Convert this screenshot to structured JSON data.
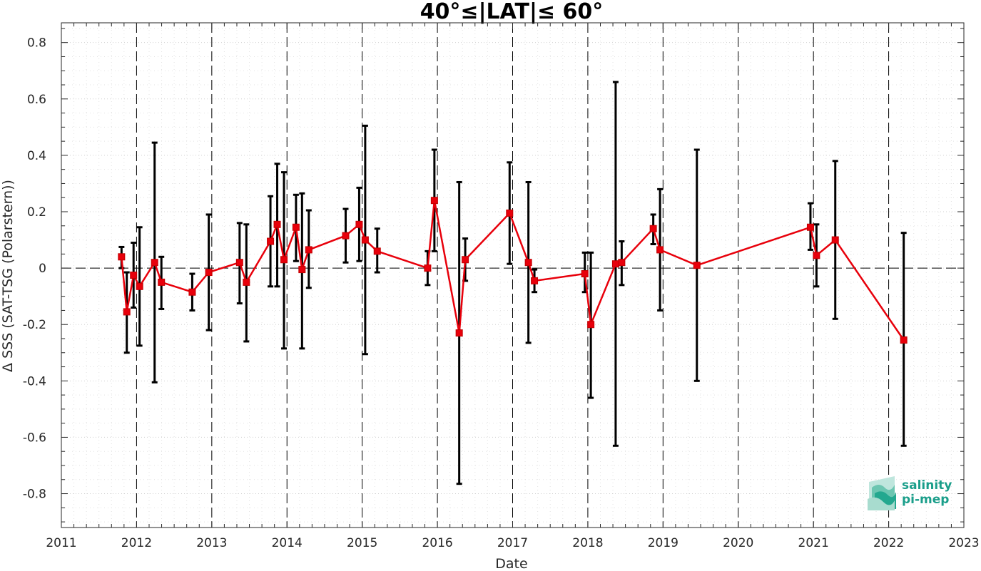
{
  "chart_data": {
    "type": "line",
    "title": "40°≤|LAT|≤ 60°",
    "xlabel": "Date",
    "ylabel": "Δ SSS (SAT-TSG (Polarstern))",
    "xlim": [
      2011,
      2023
    ],
    "ylim": [
      -0.92,
      0.87
    ],
    "x_ticks": [
      "2011",
      "2012",
      "2013",
      "2014",
      "2015",
      "2016",
      "2017",
      "2018",
      "2019",
      "2020",
      "2021",
      "2022",
      "2023"
    ],
    "y_ticks": [
      "0.8",
      "0.6",
      "0.4",
      "0.2",
      "0",
      "-0.2",
      "-0.4",
      "-0.6",
      "-0.8"
    ],
    "y_tick_values": [
      0.8,
      0.6,
      0.4,
      0.2,
      0,
      -0.2,
      -0.4,
      -0.6,
      -0.8
    ],
    "year_dividers": [
      2012,
      2013,
      2014,
      2015,
      2016,
      2017,
      2018,
      2019,
      2020,
      2021,
      2022
    ],
    "grid": true,
    "series": [
      {
        "color": "#e8000b",
        "error_color": "#000000",
        "marker": "square",
        "points": [
          {
            "x": 2011.8,
            "y": 0.04,
            "lo": 0.0,
            "hi": 0.075
          },
          {
            "x": 2011.87,
            "y": -0.155,
            "lo": -0.3,
            "hi": -0.015
          },
          {
            "x": 2011.96,
            "y": -0.025,
            "lo": -0.14,
            "hi": 0.09
          },
          {
            "x": 2012.04,
            "y": -0.065,
            "lo": -0.275,
            "hi": 0.145
          },
          {
            "x": 2012.24,
            "y": 0.02,
            "lo": -0.405,
            "hi": 0.445
          },
          {
            "x": 2012.33,
            "y": -0.05,
            "lo": -0.145,
            "hi": 0.04
          },
          {
            "x": 2012.74,
            "y": -0.085,
            "lo": -0.15,
            "hi": -0.02
          },
          {
            "x": 2012.96,
            "y": -0.015,
            "lo": -0.22,
            "hi": 0.19
          },
          {
            "x": 2013.37,
            "y": 0.02,
            "lo": -0.125,
            "hi": 0.16
          },
          {
            "x": 2013.46,
            "y": -0.05,
            "lo": -0.26,
            "hi": 0.155
          },
          {
            "x": 2013.78,
            "y": 0.095,
            "lo": -0.065,
            "hi": 0.255
          },
          {
            "x": 2013.87,
            "y": 0.155,
            "lo": -0.065,
            "hi": 0.37
          },
          {
            "x": 2013.96,
            "y": 0.03,
            "lo": -0.285,
            "hi": 0.34
          },
          {
            "x": 2014.12,
            "y": 0.145,
            "lo": 0.025,
            "hi": 0.26
          },
          {
            "x": 2014.2,
            "y": -0.005,
            "lo": -0.285,
            "hi": 0.265
          },
          {
            "x": 2014.29,
            "y": 0.065,
            "lo": -0.07,
            "hi": 0.205
          },
          {
            "x": 2014.78,
            "y": 0.115,
            "lo": 0.02,
            "hi": 0.21
          },
          {
            "x": 2014.96,
            "y": 0.155,
            "lo": 0.025,
            "hi": 0.285
          },
          {
            "x": 2015.04,
            "y": 0.1,
            "lo": -0.305,
            "hi": 0.505
          },
          {
            "x": 2015.2,
            "y": 0.06,
            "lo": -0.015,
            "hi": 0.14
          },
          {
            "x": 2015.87,
            "y": 0.0,
            "lo": -0.06,
            "hi": 0.06
          },
          {
            "x": 2015.96,
            "y": 0.24,
            "lo": 0.06,
            "hi": 0.42
          },
          {
            "x": 2016.29,
            "y": -0.23,
            "lo": -0.765,
            "hi": 0.305
          },
          {
            "x": 2016.37,
            "y": 0.03,
            "lo": -0.045,
            "hi": 0.105
          },
          {
            "x": 2016.96,
            "y": 0.195,
            "lo": 0.015,
            "hi": 0.375
          },
          {
            "x": 2017.21,
            "y": 0.02,
            "lo": -0.265,
            "hi": 0.305
          },
          {
            "x": 2017.29,
            "y": -0.045,
            "lo": -0.085,
            "hi": -0.005
          },
          {
            "x": 2017.96,
            "y": -0.02,
            "lo": -0.085,
            "hi": 0.055
          },
          {
            "x": 2018.04,
            "y": -0.2,
            "lo": -0.46,
            "hi": 0.055
          },
          {
            "x": 2018.37,
            "y": 0.015,
            "lo": -0.63,
            "hi": 0.66
          },
          {
            "x": 2018.45,
            "y": 0.02,
            "lo": -0.06,
            "hi": 0.095
          },
          {
            "x": 2018.87,
            "y": 0.14,
            "lo": 0.085,
            "hi": 0.19
          },
          {
            "x": 2018.96,
            "y": 0.065,
            "lo": -0.15,
            "hi": 0.28
          },
          {
            "x": 2019.45,
            "y": 0.01,
            "lo": -0.4,
            "hi": 0.42
          },
          {
            "x": 2020.96,
            "y": 0.145,
            "lo": 0.065,
            "hi": 0.23
          },
          {
            "x": 2021.04,
            "y": 0.045,
            "lo": -0.065,
            "hi": 0.155
          },
          {
            "x": 2021.29,
            "y": 0.1,
            "lo": -0.18,
            "hi": 0.38
          },
          {
            "x": 2022.2,
            "y": -0.255,
            "lo": -0.63,
            "hi": 0.125
          }
        ]
      }
    ]
  },
  "logo": {
    "line1": "salinity",
    "line2": "pi-mep",
    "color": "#1a9e8a"
  }
}
